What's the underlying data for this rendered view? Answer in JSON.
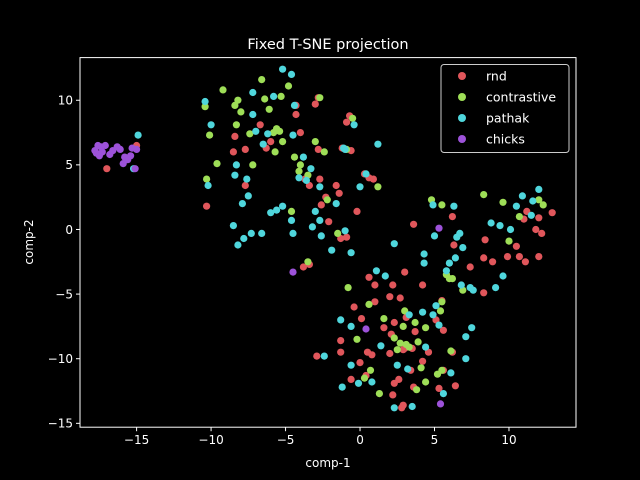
{
  "chart_data": {
    "type": "scatter",
    "title": "Fixed T-SNE projection",
    "xlabel": "comp-1",
    "ylabel": "comp-2",
    "xlim": [
      -18.8,
      14.5
    ],
    "ylim": [
      -15.3,
      13.3
    ],
    "xticks": [
      -15,
      -10,
      -5,
      0,
      5,
      10
    ],
    "yticks": [
      -15,
      -10,
      -5,
      0,
      5,
      10
    ],
    "xtick_labels": [
      "−15",
      "−10",
      "−5",
      "0",
      "5",
      "10"
    ],
    "ytick_labels": [
      "−15",
      "−10",
      "−5",
      "0",
      "5",
      "10"
    ],
    "grid": false,
    "legend_position": "top-right",
    "background": "#000000",
    "series": [
      {
        "name": "rnd",
        "color": "#e0565b",
        "points": [
          [
            -17.0,
            4.7
          ],
          [
            -15.0,
            6.5
          ],
          [
            -10.3,
            1.8
          ],
          [
            -8.5,
            6.0
          ],
          [
            -8.4,
            7.2
          ],
          [
            -7.7,
            6.2
          ],
          [
            -7.7,
            3.4
          ],
          [
            -6.7,
            8.1
          ],
          [
            -6.3,
            6.3
          ],
          [
            -6.0,
            6.8
          ],
          [
            -4.3,
            8.9
          ],
          [
            -4.3,
            9.6
          ],
          [
            -4.0,
            7.5
          ],
          [
            -3.7,
            3.9
          ],
          [
            -3.4,
            3.4
          ],
          [
            -3.0,
            9.7
          ],
          [
            -2.8,
            10.2
          ],
          [
            -2.8,
            6.2
          ],
          [
            -2.7,
            3.9
          ],
          [
            -2.6,
            1.9
          ],
          [
            -2.3,
            2.5
          ],
          [
            -2.1,
            0.6
          ],
          [
            -1.6,
            3.4
          ],
          [
            -1.4,
            2.8
          ],
          [
            -1.2,
            6.3
          ],
          [
            -0.9,
            8.3
          ],
          [
            -0.7,
            8.8
          ],
          [
            -0.6,
            6.1
          ],
          [
            -0.2,
            1.4
          ],
          [
            -1.3,
            -0.7
          ],
          [
            -3.8,
            -2.9
          ],
          [
            -3.4,
            -2.7
          ],
          [
            0.3,
            4.3
          ],
          [
            0.6,
            4.0
          ],
          [
            0.9,
            3.9
          ],
          [
            -0.9,
            -0.6
          ],
          [
            0.6,
            -3.7
          ],
          [
            1.0,
            -4.3
          ],
          [
            2.2,
            -4.3
          ],
          [
            2.0,
            -5.2
          ],
          [
            2.7,
            -5.3
          ],
          [
            3.0,
            -3.3
          ],
          [
            4.2,
            -4.3
          ],
          [
            -1.3,
            -8.6
          ],
          [
            -0.4,
            -6.0
          ],
          [
            0.1,
            -6.9
          ],
          [
            0.5,
            -9.5
          ],
          [
            0.8,
            -9.7
          ],
          [
            1.0,
            -5.6
          ],
          [
            1.6,
            -7.6
          ],
          [
            2.3,
            -7.2
          ],
          [
            2.1,
            -8.1
          ],
          [
            2.9,
            -9.3
          ],
          [
            3.1,
            -6.8
          ],
          [
            3.0,
            -9.2
          ],
          [
            3.4,
            -10.9
          ],
          [
            3.5,
            -9.2
          ],
          [
            4.2,
            -10.2
          ],
          [
            4.6,
            -9.5
          ],
          [
            3.7,
            -7.9
          ],
          [
            5.5,
            -5.5
          ],
          [
            5.1,
            -7.0
          ],
          [
            6.2,
            -9.5
          ],
          [
            6.4,
            -12.1
          ],
          [
            5.6,
            -7.8
          ],
          [
            2.2,
            -12.8
          ],
          [
            2.8,
            -13.8
          ],
          [
            2.9,
            -13.6
          ],
          [
            5.3,
            -12.3
          ],
          [
            -2.9,
            -9.8
          ],
          [
            -1.3,
            -9.5
          ],
          [
            0.0,
            -10.3
          ],
          [
            -0.6,
            -11.6
          ],
          [
            0.4,
            -11.3
          ],
          [
            2.3,
            -11.9
          ],
          [
            2.6,
            -11.6
          ],
          [
            2.0,
            -9.6
          ],
          [
            3.6,
            -12.2
          ],
          [
            5.6,
            -10.9
          ],
          [
            3.6,
            0.4
          ],
          [
            7.4,
            -2.9
          ],
          [
            8.3,
            -4.9
          ],
          [
            8.9,
            -2.5
          ],
          [
            8.3,
            -2.2
          ],
          [
            9.9,
            -2.1
          ],
          [
            10.5,
            -1.3
          ],
          [
            10.7,
            -2.1
          ],
          [
            11.1,
            -2.5
          ],
          [
            12.0,
            -2.1
          ],
          [
            11.0,
            0.8
          ],
          [
            11.8,
            0.0
          ],
          [
            12.2,
            -0.3
          ],
          [
            12.9,
            1.3
          ],
          [
            11.2,
            1.4
          ],
          [
            12.0,
            0.9
          ],
          [
            8.4,
            -0.8
          ],
          [
            6.3,
            -1.2
          ],
          [
            6.2,
            1.0
          ]
        ]
      },
      {
        "name": "contrastive",
        "color": "#9ede57",
        "points": [
          [
            -10.4,
            9.5
          ],
          [
            -10.1,
            7.3
          ],
          [
            -10.3,
            3.9
          ],
          [
            -9.6,
            5.1
          ],
          [
            -9.2,
            10.8
          ],
          [
            -8.4,
            9.6
          ],
          [
            -8.2,
            10.0
          ],
          [
            -8.0,
            9.1
          ],
          [
            -8.3,
            8.1
          ],
          [
            -7.4,
            7.4
          ],
          [
            -7.2,
            5.0
          ],
          [
            -6.6,
            11.6
          ],
          [
            -6.4,
            10.1
          ],
          [
            -6.1,
            9.3
          ],
          [
            -5.8,
            7.5
          ],
          [
            -5.6,
            7.8
          ],
          [
            -5.4,
            7.6
          ],
          [
            -5.2,
            6.8
          ],
          [
            -5.7,
            6.0
          ],
          [
            -5.3,
            10.3
          ],
          [
            -4.8,
            11.1
          ],
          [
            -4.4,
            5.6
          ],
          [
            -4.1,
            4.5
          ],
          [
            -4.0,
            5.0
          ],
          [
            -3.5,
            4.2
          ],
          [
            -3.0,
            6.8
          ],
          [
            -2.7,
            10.2
          ],
          [
            -2.4,
            6.0
          ],
          [
            -2.2,
            2.3
          ],
          [
            -0.9,
            6.2
          ],
          [
            -0.5,
            8.6
          ],
          [
            -3.5,
            -2.5
          ],
          [
            -1.5,
            -0.3
          ],
          [
            -0.8,
            -4.5
          ],
          [
            1.2,
            3.3
          ],
          [
            -4.6,
            1.4
          ],
          [
            0.6,
            -5.8
          ],
          [
            1.6,
            -6.9
          ],
          [
            2.3,
            -8.4
          ],
          [
            2.5,
            -9.3
          ],
          [
            2.7,
            -8.8
          ],
          [
            3.1,
            -8.9
          ],
          [
            3.3,
            -9.1
          ],
          [
            3.0,
            -6.3
          ],
          [
            2.9,
            -7.5
          ],
          [
            3.7,
            -7.2
          ],
          [
            3.9,
            -8.7
          ],
          [
            4.4,
            -7.6
          ],
          [
            4.1,
            -10.7
          ],
          [
            5.2,
            -11.2
          ],
          [
            5.5,
            -10.9
          ],
          [
            6.1,
            -9.4
          ],
          [
            5.4,
            -6.3
          ],
          [
            5.5,
            -5.6
          ],
          [
            6.2,
            -3.8
          ],
          [
            -0.2,
            -8.5
          ],
          [
            0.3,
            -11.5
          ],
          [
            0.7,
            -10.9
          ],
          [
            1.3,
            -12.7
          ],
          [
            3.8,
            -12.4
          ],
          [
            4.4,
            -11.8
          ],
          [
            5.8,
            -3.5
          ],
          [
            6.0,
            -3.8
          ],
          [
            4.8,
            2.3
          ],
          [
            5.5,
            1.9
          ],
          [
            8.3,
            2.7
          ],
          [
            9.6,
            2.1
          ],
          [
            10.0,
            -0.9
          ],
          [
            10.7,
            1.0
          ],
          [
            12.0,
            2.3
          ],
          [
            12.3,
            1.9
          ],
          [
            6.9,
            -4.7
          ]
        ]
      },
      {
        "name": "pathak",
        "color": "#4fd6dc",
        "points": [
          [
            -14.9,
            7.3
          ],
          [
            -15.2,
            4.7
          ],
          [
            -10.4,
            9.9
          ],
          [
            -10.2,
            3.4
          ],
          [
            -10.0,
            8.1
          ],
          [
            -8.3,
            5.0
          ],
          [
            -8.4,
            4.2
          ],
          [
            -7.9,
            2.0
          ],
          [
            -7.6,
            3.9
          ],
          [
            -7.5,
            2.6
          ],
          [
            -7.2,
            10.6
          ],
          [
            -7.2,
            8.9
          ],
          [
            -7.0,
            7.6
          ],
          [
            -6.5,
            6.6
          ],
          [
            -6.2,
            7.4
          ],
          [
            -5.8,
            10.3
          ],
          [
            -5.2,
            12.4
          ],
          [
            -4.6,
            12.0
          ],
          [
            -4.4,
            9.6
          ],
          [
            -4.5,
            7.3
          ],
          [
            -4.1,
            4.0
          ],
          [
            -3.8,
            5.6
          ],
          [
            -3.6,
            3.8
          ],
          [
            -3.3,
            4.7
          ],
          [
            -3.0,
            1.4
          ],
          [
            -2.7,
            0.7
          ],
          [
            -2.7,
            3.3
          ],
          [
            -1.6,
            2.0
          ],
          [
            -1.0,
            6.2
          ],
          [
            -0.4,
            8.1
          ],
          [
            0.0,
            3.3
          ],
          [
            0.4,
            4.3
          ],
          [
            1.2,
            6.6
          ],
          [
            -6.0,
            1.3
          ],
          [
            -5.6,
            1.5
          ],
          [
            -5.2,
            1.8
          ],
          [
            -4.6,
            0.7
          ],
          [
            -3.2,
            0.2
          ],
          [
            -4.5,
            -0.3
          ],
          [
            -6.6,
            -0.3
          ],
          [
            -7.3,
            -0.3
          ],
          [
            -8.2,
            -1.2
          ],
          [
            -7.8,
            -0.7
          ],
          [
            -8.5,
            0.3
          ],
          [
            -2.6,
            -0.5
          ],
          [
            -1.9,
            -1.6
          ],
          [
            -1.0,
            -0.1
          ],
          [
            -0.6,
            -1.8
          ],
          [
            1.1,
            -3.2
          ],
          [
            2.3,
            -1.1
          ],
          [
            1.7,
            -3.6
          ],
          [
            4.3,
            -1.9
          ],
          [
            4.3,
            -2.6
          ],
          [
            5.0,
            -0.5
          ],
          [
            6.7,
            -0.3
          ],
          [
            6.9,
            -1.4
          ],
          [
            6.4,
            -2.2
          ],
          [
            6.0,
            -2.6
          ],
          [
            5.8,
            -3.2
          ],
          [
            6.8,
            -4.3
          ],
          [
            7.4,
            -4.5
          ],
          [
            7.6,
            -4.7
          ],
          [
            9.1,
            -4.5
          ],
          [
            9.6,
            -3.6
          ],
          [
            8.8,
            0.5
          ],
          [
            9.4,
            0.3
          ],
          [
            10.1,
            0.0
          ],
          [
            10.5,
            1.8
          ],
          [
            10.9,
            2.6
          ],
          [
            11.6,
            2.2
          ],
          [
            12.0,
            3.1
          ],
          [
            11.5,
            1.1
          ],
          [
            6.3,
            1.8
          ],
          [
            6.5,
            -0.6
          ],
          [
            4.9,
            1.9
          ],
          [
            5.1,
            -5.9
          ],
          [
            4.9,
            -6.6
          ],
          [
            4.2,
            -6.4
          ],
          [
            3.3,
            -6.6
          ],
          [
            -1.3,
            -7.0
          ],
          [
            -0.6,
            -7.5
          ],
          [
            1.4,
            -9.0
          ],
          [
            2.5,
            -10.5
          ],
          [
            4.4,
            -9.1
          ],
          [
            5.3,
            -7.4
          ],
          [
            7.5,
            -7.6
          ],
          [
            7.1,
            -10.0
          ],
          [
            7.1,
            -8.3
          ],
          [
            -0.6,
            -10.5
          ],
          [
            -0.1,
            -11.9
          ],
          [
            -1.2,
            -12.2
          ],
          [
            0.8,
            -11.8
          ],
          [
            3.5,
            -13.7
          ],
          [
            2.3,
            -13.8
          ],
          [
            3.2,
            -10.8
          ],
          [
            6.1,
            -11.1
          ],
          [
            -2.4,
            -9.8
          ],
          [
            5.6,
            -12.7
          ],
          [
            -1.1,
            6.3
          ]
        ]
      },
      {
        "name": "chicks",
        "color": "#9d52d9",
        "points": [
          [
            -17.8,
            6.1
          ],
          [
            -17.7,
            5.9
          ],
          [
            -17.6,
            6.5
          ],
          [
            -17.5,
            5.7
          ],
          [
            -17.4,
            6.4
          ],
          [
            -17.3,
            6.0
          ],
          [
            -17.1,
            6.5
          ],
          [
            -16.8,
            5.8
          ],
          [
            -16.6,
            6.1
          ],
          [
            -16.3,
            6.4
          ],
          [
            -16.1,
            6.2
          ],
          [
            -15.8,
            5.6
          ],
          [
            -15.6,
            5.4
          ],
          [
            -15.4,
            5.7
          ],
          [
            -15.3,
            6.3
          ],
          [
            -15.0,
            6.2
          ],
          [
            -15.1,
            4.7
          ],
          [
            -15.9,
            5.1
          ],
          [
            -4.5,
            -3.3
          ],
          [
            0.4,
            -7.7
          ],
          [
            5.3,
            0.1
          ],
          [
            5.4,
            -13.5
          ]
        ]
      }
    ]
  }
}
